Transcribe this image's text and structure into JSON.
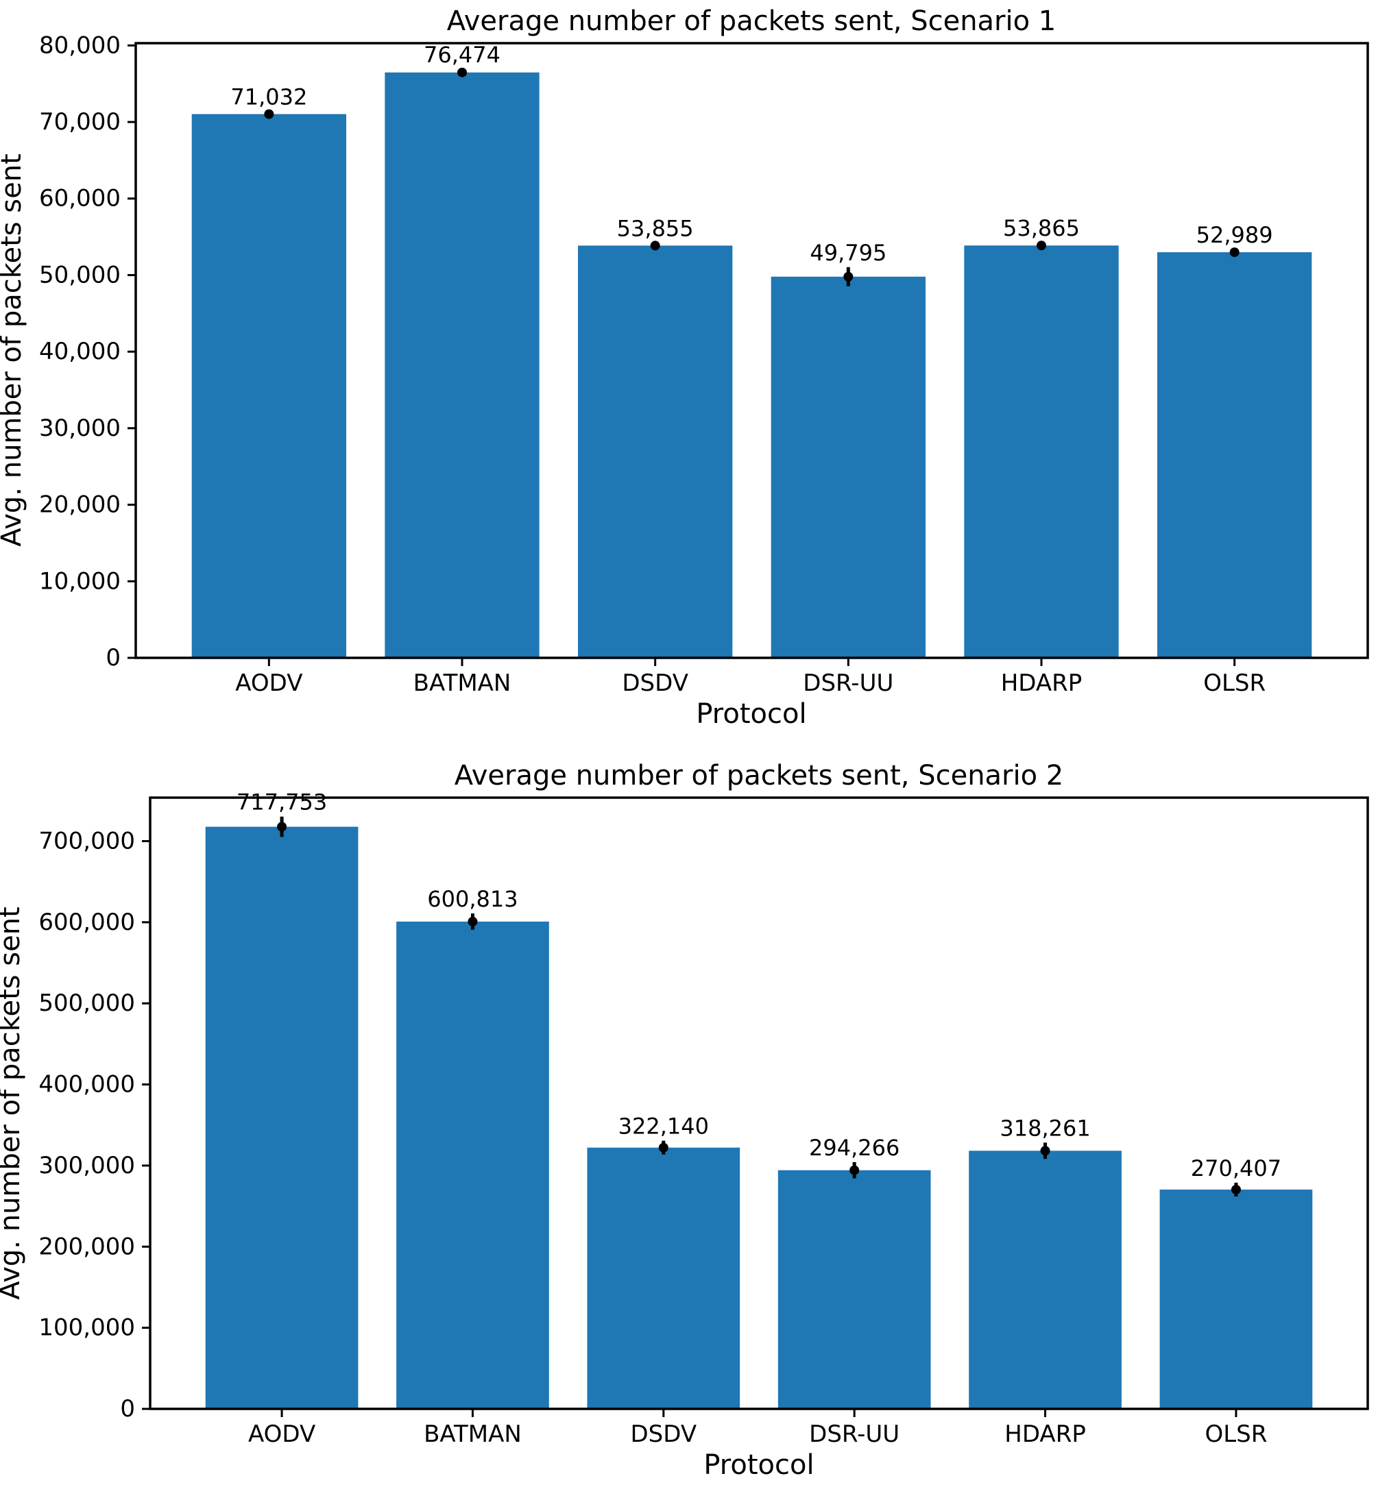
{
  "page": {
    "background": "#ffffff"
  },
  "chart_data": [
    {
      "type": "bar",
      "title": "Average number of packets sent, Scenario 1",
      "xlabel": "Protocol",
      "ylabel": "Avg. number of packets sent",
      "categories": [
        "AODV",
        "BATMAN",
        "DSDV",
        "DSR-UU",
        "HDARP",
        "OLSR"
      ],
      "values": [
        71032,
        76474,
        53855,
        49795,
        53865,
        52989
      ],
      "value_labels": [
        "71,032",
        "76,474",
        "53,855",
        "49,795",
        "53,865",
        "52,989"
      ],
      "errors": [
        350,
        400,
        350,
        1250,
        400,
        350
      ],
      "ylim": [
        0,
        80298
      ],
      "ytick_values": [
        0,
        10000,
        20000,
        30000,
        40000,
        50000,
        60000,
        70000,
        80000
      ],
      "ytick_labels": [
        "0",
        "10,000",
        "20,000",
        "30,000",
        "40,000",
        "50,000",
        "60,000",
        "70,000",
        "80,000"
      ],
      "grid": false,
      "legend": null,
      "bar_color": "#1f77b4",
      "error_color": "#000000"
    },
    {
      "type": "bar",
      "title": "Average number of packets sent, Scenario 2",
      "xlabel": "Protocol",
      "ylabel": "Avg. number of packets sent",
      "categories": [
        "AODV",
        "BATMAN",
        "DSDV",
        "DSR-UU",
        "HDARP",
        "OLSR"
      ],
      "values": [
        717753,
        600813,
        322140,
        294266,
        318261,
        270407
      ],
      "value_labels": [
        "717,753",
        "600,813",
        "322,140",
        "294,266",
        "318,261",
        "270,407"
      ],
      "errors": [
        12500,
        10000,
        8500,
        10000,
        10000,
        8500
      ],
      "ylim": [
        0,
        753641
      ],
      "ytick_values": [
        0,
        100000,
        200000,
        300000,
        400000,
        500000,
        600000,
        700000
      ],
      "ytick_labels": [
        "0",
        "100,000",
        "200,000",
        "300,000",
        "400,000",
        "500,000",
        "600,000",
        "700,000"
      ],
      "grid": false,
      "legend": null,
      "bar_color": "#1f77b4",
      "error_color": "#000000"
    }
  ]
}
